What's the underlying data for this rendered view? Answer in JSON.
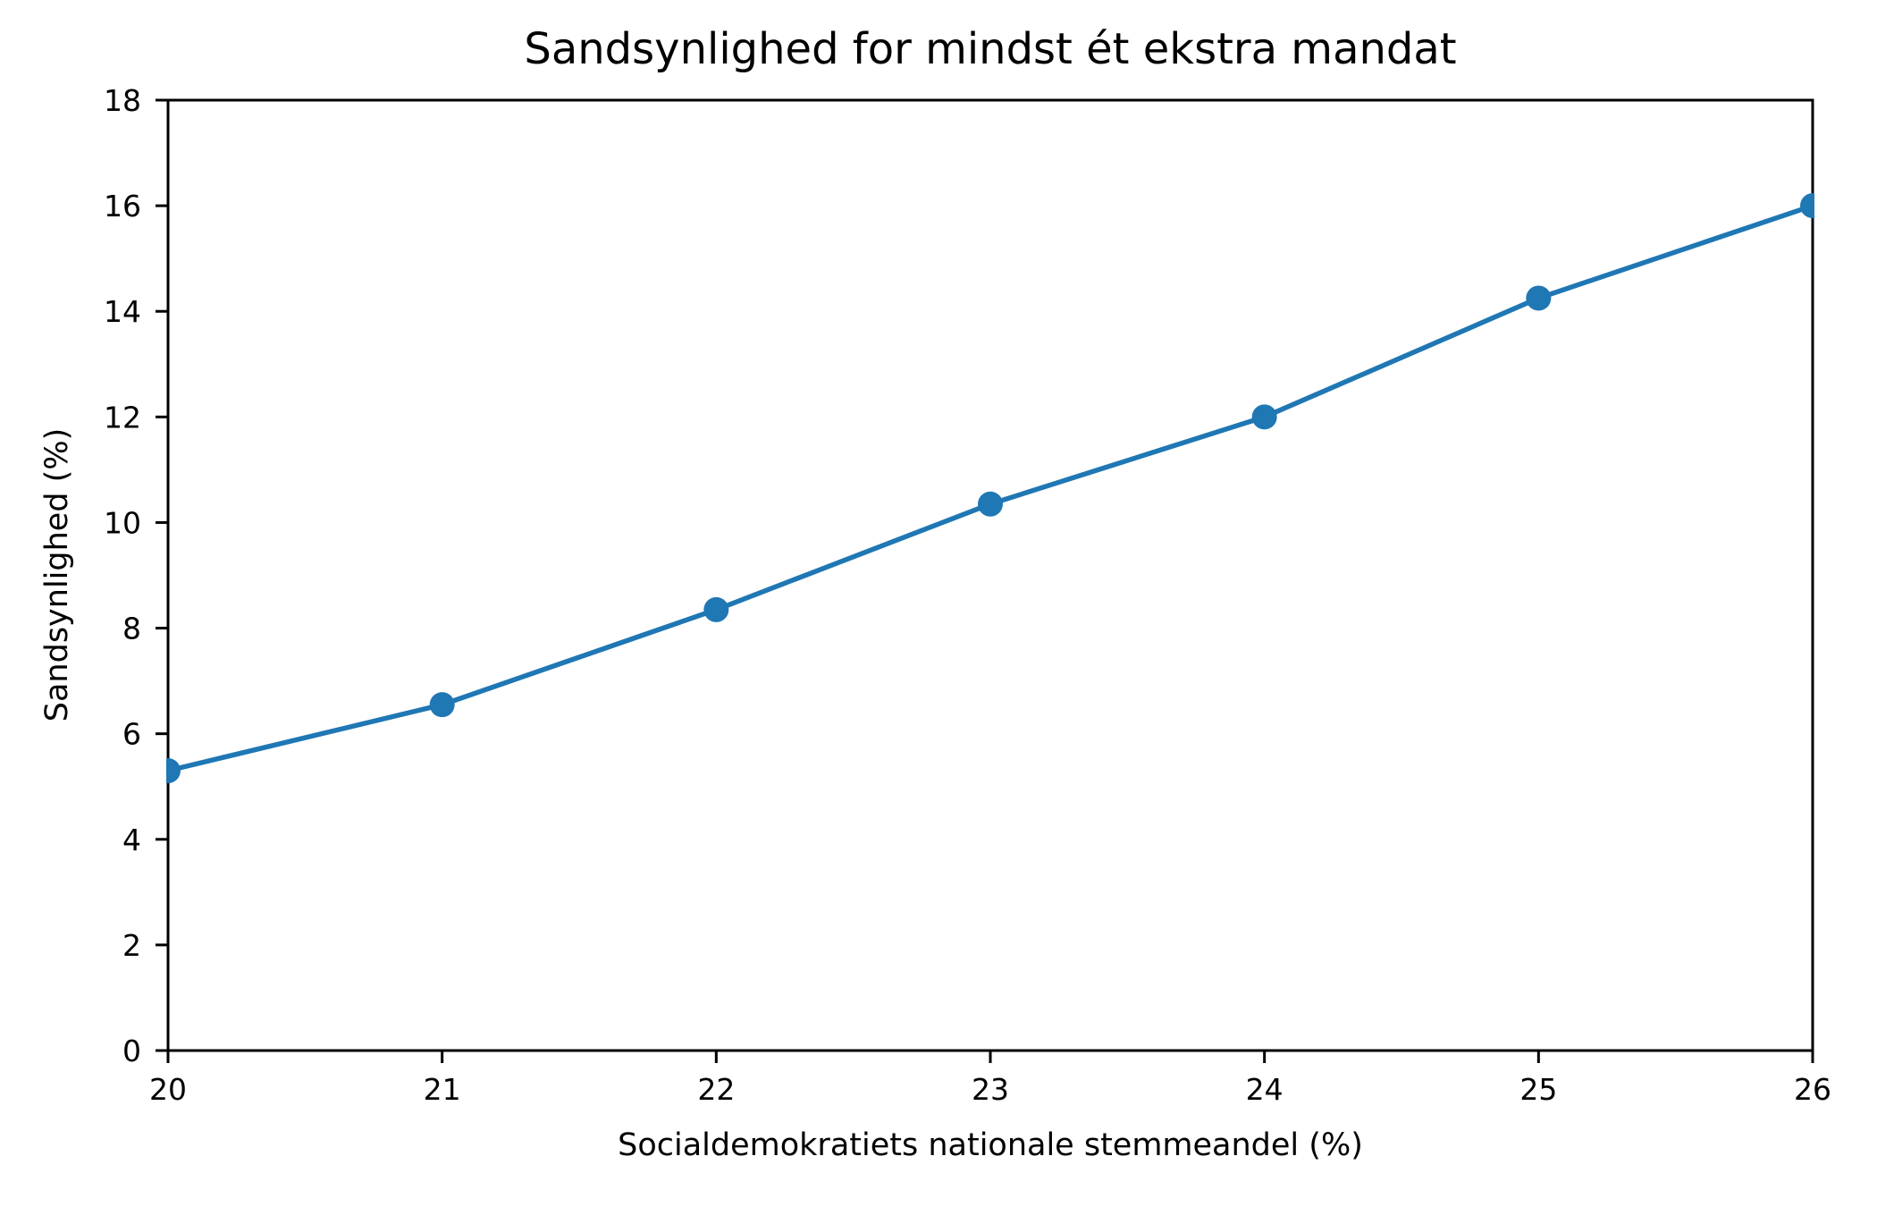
{
  "chart_data": {
    "type": "line",
    "title": "Sandsynlighed for mindst ét ekstra mandat",
    "xlabel": "Socialdemokratiets nationale stemmeandel (%)",
    "ylabel": "Sandsynlighed (%)",
    "x": [
      20,
      21,
      22,
      23,
      24,
      25,
      26
    ],
    "y": [
      5.3,
      6.55,
      8.35,
      10.35,
      12.0,
      14.25,
      16.0
    ],
    "series_name": "Sandsynlighed for mindst ét ekstra mandat",
    "xlim": [
      20,
      26
    ],
    "ylim": [
      0,
      18
    ],
    "xticks": [
      "20",
      "21",
      "22",
      "23",
      "24",
      "25",
      "26"
    ],
    "yticks": [
      "0",
      "2",
      "4",
      "6",
      "8",
      "10",
      "12",
      "14",
      "16",
      "18"
    ],
    "line_color": "#1f77b4",
    "marker": "circle",
    "marker_color": "#1f77b4",
    "axis_color": "#000000",
    "grid": false,
    "legend": null
  }
}
